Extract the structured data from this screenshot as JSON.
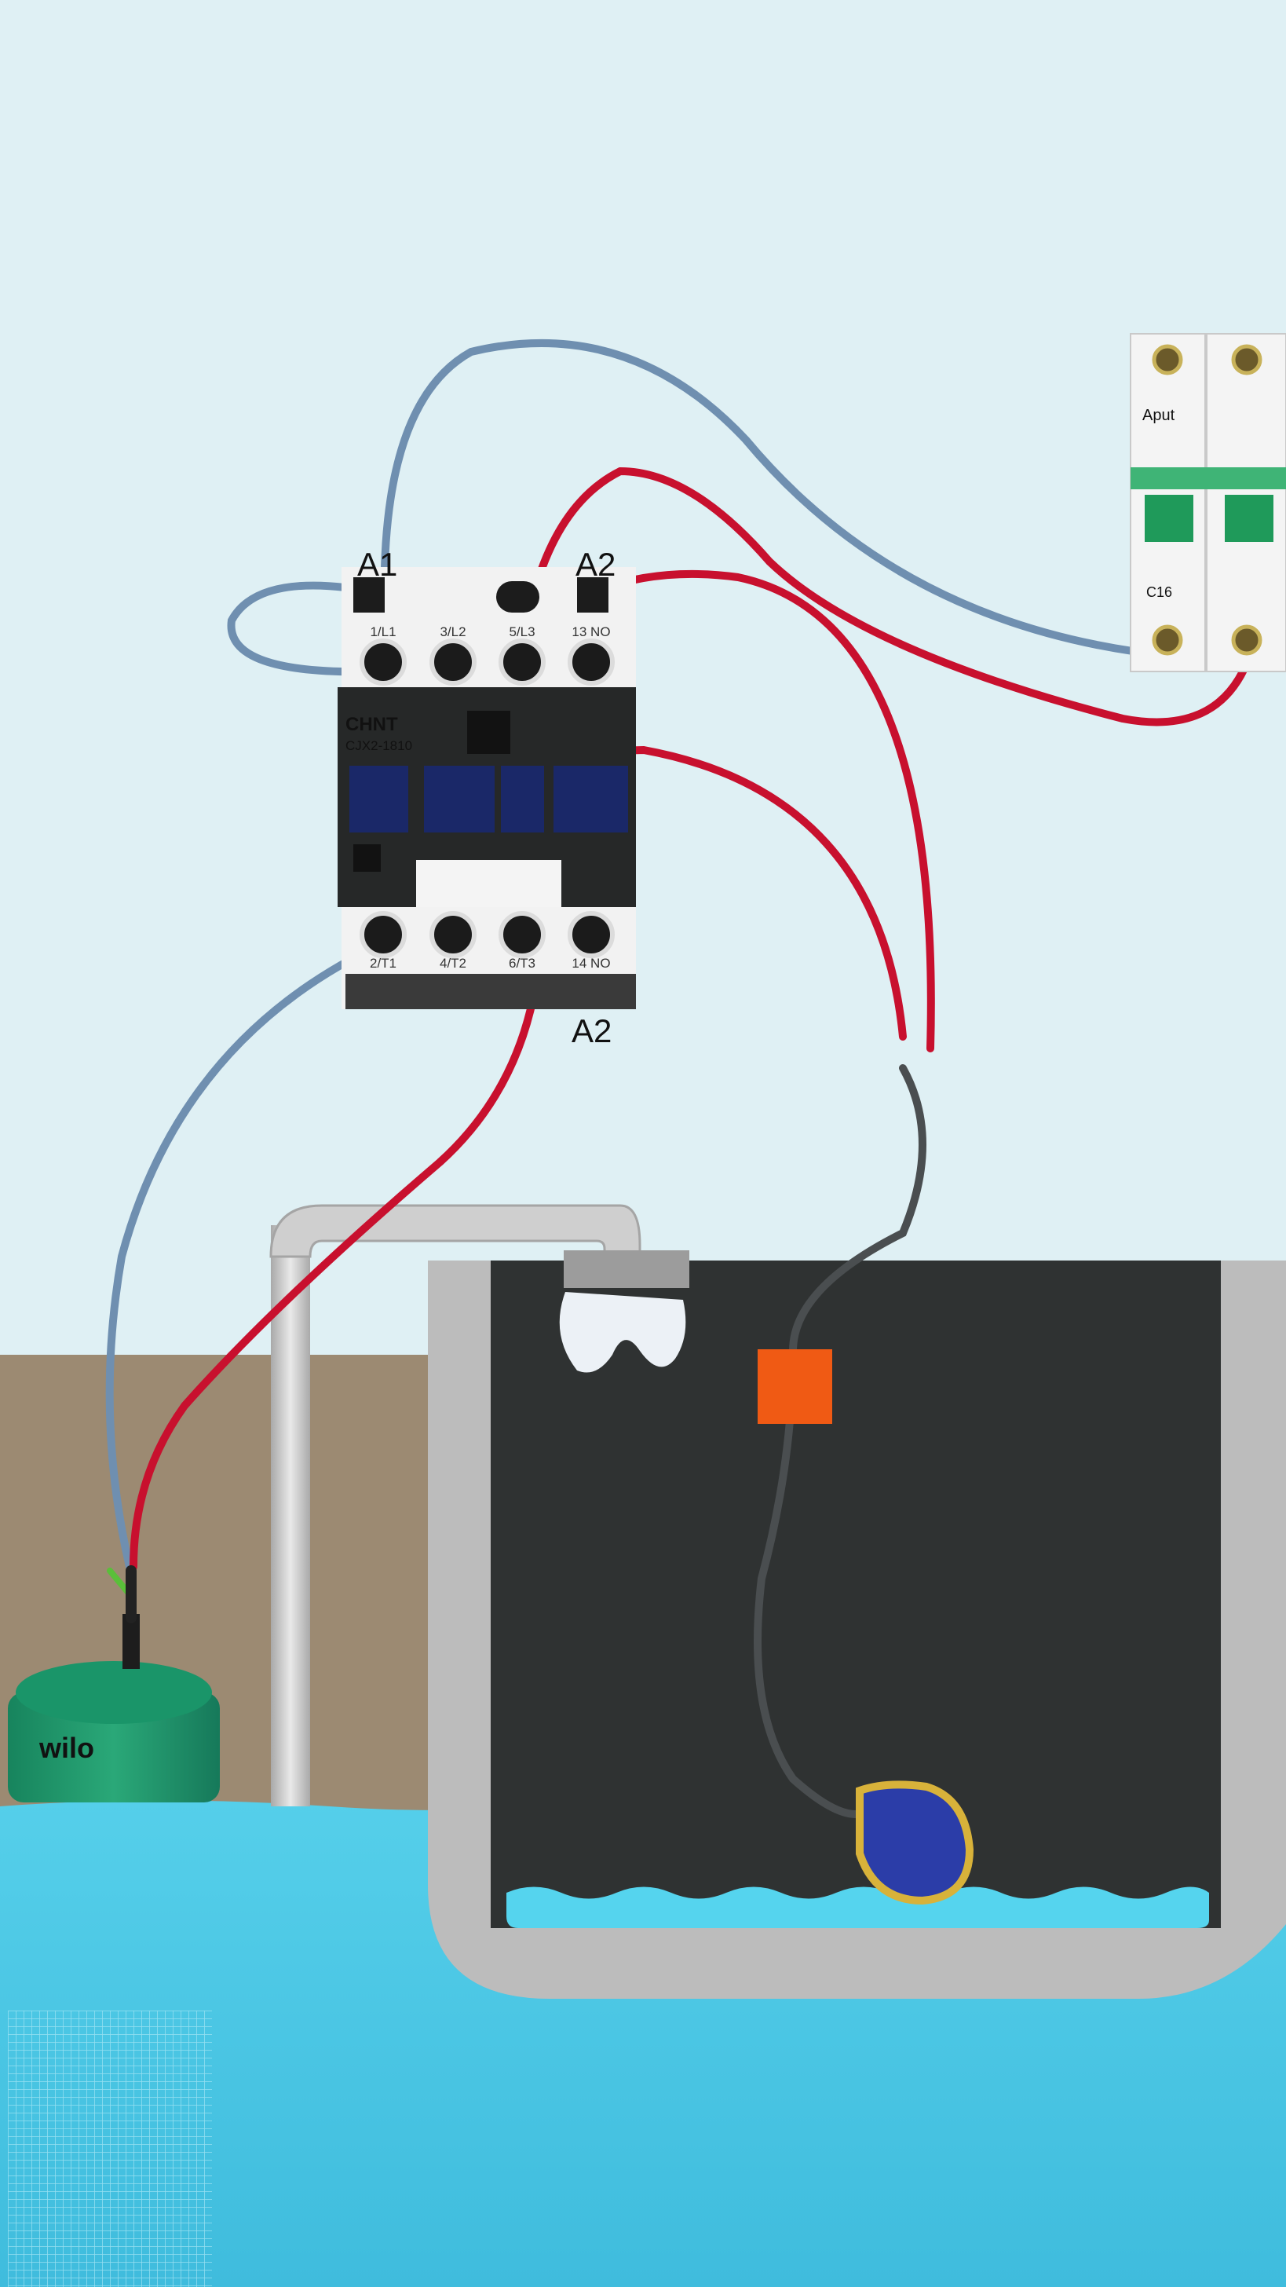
{
  "contactor": {
    "brand": "CHNT",
    "model": "CJX2-1810",
    "top_left_label": "A1",
    "top_right_label": "A2",
    "bottom_right_label": "A2",
    "top_terminals": [
      "1/L1",
      "3/L2",
      "5/L3",
      "13 NO"
    ],
    "bottom_terminals": [
      "2/T1",
      "4/T2",
      "6/T3",
      "14 NO"
    ]
  },
  "breaker": {
    "brand": "Aput",
    "rating": "C16"
  },
  "pump": {
    "brand": "wilo"
  },
  "colors": {
    "wall": "#dff0f4",
    "floor_wall": "#9c8a72",
    "water": "#4cc7e4",
    "tank_interior": "#2f3232",
    "tank_frame": "#b9b9b9",
    "live_wire": "#c8102e",
    "neutral_wire": "#6f8fb0",
    "float_cable": "#4a4e50",
    "float_switch": "#2b3da8",
    "float_clamp": "#f05a14",
    "pump_body": "#1f8f66",
    "breaker_lever": "#1f9a5a"
  },
  "icons": [
    "contactor-icon",
    "circuit-breaker-icon",
    "submersible-pump-icon",
    "float-switch-icon"
  ]
}
